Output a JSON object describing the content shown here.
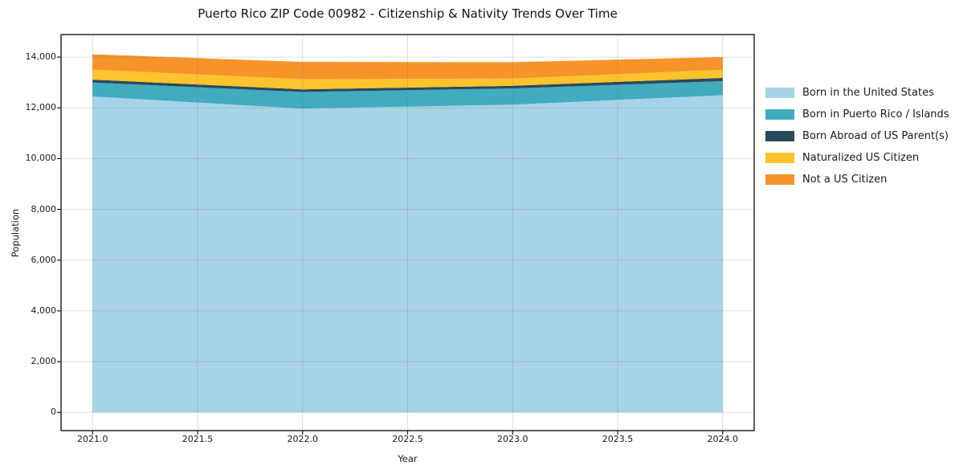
{
  "title": "Puerto Rico ZIP Code 00982 - Citizenship & Nativity Trends Over Time",
  "chart_data": {
    "type": "area",
    "stacked": true,
    "title": "Puerto Rico ZIP Code 00982 - Citizenship & Nativity Trends Over Time",
    "xlabel": "Year",
    "ylabel": "Population",
    "x": [
      2021,
      2022,
      2023,
      2024
    ],
    "series": [
      {
        "name": "Born in the United States",
        "color": "#a6d3e8",
        "values": [
          12450,
          11970,
          12130,
          12500
        ]
      },
      {
        "name": "Born in Puerto Rico / Islands",
        "color": "#41abc0",
        "values": [
          550,
          655,
          635,
          555
        ]
      },
      {
        "name": "Born Abroad of US Parent(s)",
        "color": "#2a4a5c",
        "values": [
          115,
          105,
          105,
          125
        ]
      },
      {
        "name": "Naturalized US Citizen",
        "color": "#fcc32d",
        "values": [
          395,
          400,
          285,
          320
        ]
      },
      {
        "name": "Not a US Citizen",
        "color": "#f79429",
        "values": [
          600,
          685,
          645,
          505
        ]
      }
    ],
    "totals": [
      14110,
      13815,
      13800,
      14005
    ],
    "xlim": [
      2020.85,
      2024.15
    ],
    "ylim": [
      -720,
      14890
    ],
    "x_tick_values": [
      2021.0,
      2021.5,
      2022.0,
      2022.5,
      2023.0,
      2023.5,
      2024.0
    ],
    "x_tick_labels": [
      "2021.0",
      "2021.5",
      "2022.0",
      "2022.5",
      "2023.0",
      "2023.5",
      "2024.0"
    ],
    "y_tick_values": [
      0,
      2000,
      4000,
      6000,
      8000,
      10000,
      12000,
      14000
    ],
    "y_tick_labels": [
      "0",
      "2,000",
      "4,000",
      "6,000",
      "8,000",
      "10,000",
      "12,000",
      "14,000"
    ],
    "grid": true,
    "legend_position": "right-outside",
    "colors": {
      "grid": "rgba(110,110,110,0.22)",
      "spine": "#1a1a1a",
      "text": "#1a1a1a"
    }
  }
}
